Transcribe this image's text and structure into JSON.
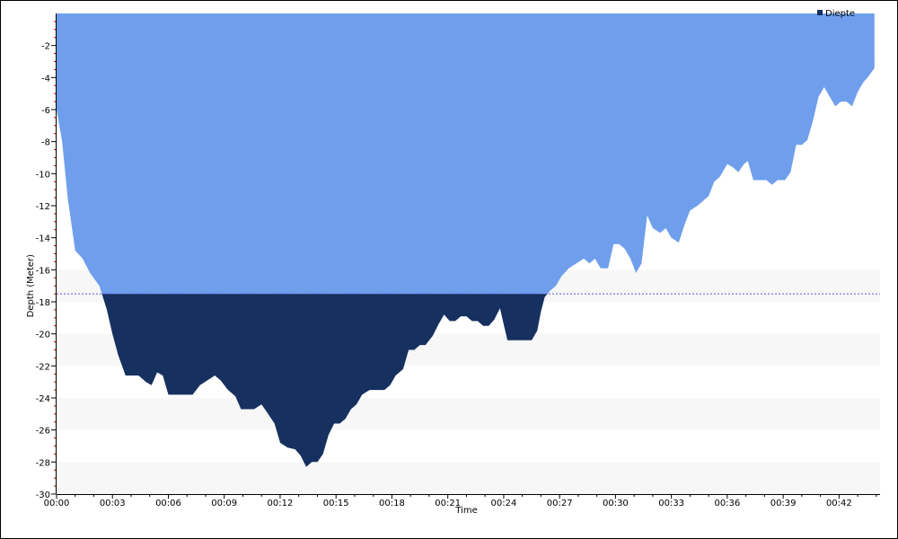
{
  "chart_data": {
    "type": "area",
    "title": "",
    "xlabel": "Time",
    "ylabel": "Depth (Meter)",
    "xlim": [
      0,
      44.2
    ],
    "ylim": [
      -30,
      0
    ],
    "x_ticks": [
      0,
      3,
      6,
      9,
      12,
      15,
      18,
      21,
      24,
      27,
      30,
      33,
      36,
      39,
      42
    ],
    "x_tick_labels": [
      "00:00",
      "00:03",
      "00:06",
      "00:09",
      "00:12",
      "00:15",
      "00:18",
      "00:21",
      "00:24",
      "00:27",
      "00:30",
      "00:33",
      "00:36",
      "00:39",
      "00:42"
    ],
    "y_ticks": [
      -2,
      -4,
      -6,
      -8,
      -10,
      -12,
      -14,
      -16,
      -18,
      -20,
      -22,
      -24,
      -26,
      -28,
      -30
    ],
    "y_tick_labels": [
      "-2",
      "-4",
      "-6",
      "-8",
      "-10",
      "-12",
      "-14",
      "-16",
      "-18",
      "-20",
      "-22",
      "-24",
      "-26",
      "-28",
      "-30"
    ],
    "threshold_depth": -17.5,
    "legend": {
      "label": "Diepte",
      "placement": "top-right"
    },
    "grid": "alternating horizontal bands",
    "colors": {
      "area_upper": "#6f9fec",
      "area_lower": "#16305f",
      "band": "#f7f7f7",
      "threshold_line": "#5a5ad0",
      "legend_swatch": "#16305f"
    },
    "series": [
      {
        "name": "Diepte",
        "points": [
          [
            0,
            -6.0
          ],
          [
            0.3,
            -8.0
          ],
          [
            0.6,
            -11.5
          ],
          [
            1.0,
            -14.8
          ],
          [
            1.4,
            -15.3
          ],
          [
            1.8,
            -16.2
          ],
          [
            2.3,
            -17.0
          ],
          [
            2.7,
            -18.5
          ],
          [
            3.0,
            -20.0
          ],
          [
            3.3,
            -21.3
          ],
          [
            3.7,
            -22.6
          ],
          [
            4.0,
            -22.6
          ],
          [
            4.4,
            -22.6
          ],
          [
            4.8,
            -23.0
          ],
          [
            5.1,
            -23.2
          ],
          [
            5.4,
            -22.4
          ],
          [
            5.7,
            -22.6
          ],
          [
            6.0,
            -23.8
          ],
          [
            6.4,
            -23.8
          ],
          [
            6.8,
            -23.8
          ],
          [
            7.3,
            -23.8
          ],
          [
            7.7,
            -23.2
          ],
          [
            8.1,
            -22.9
          ],
          [
            8.5,
            -22.6
          ],
          [
            8.8,
            -22.9
          ],
          [
            9.2,
            -23.5
          ],
          [
            9.6,
            -23.9
          ],
          [
            9.9,
            -24.7
          ],
          [
            10.3,
            -24.7
          ],
          [
            10.6,
            -24.7
          ],
          [
            11.0,
            -24.4
          ],
          [
            11.3,
            -24.9
          ],
          [
            11.7,
            -25.6
          ],
          [
            12.0,
            -26.8
          ],
          [
            12.4,
            -27.1
          ],
          [
            12.8,
            -27.2
          ],
          [
            13.1,
            -27.6
          ],
          [
            13.4,
            -28.3
          ],
          [
            13.7,
            -28.0
          ],
          [
            14.0,
            -28.0
          ],
          [
            14.3,
            -27.5
          ],
          [
            14.6,
            -26.3
          ],
          [
            14.9,
            -25.6
          ],
          [
            15.2,
            -25.6
          ],
          [
            15.5,
            -25.3
          ],
          [
            15.8,
            -24.7
          ],
          [
            16.1,
            -24.4
          ],
          [
            16.4,
            -23.8
          ],
          [
            16.8,
            -23.5
          ],
          [
            17.2,
            -23.5
          ],
          [
            17.6,
            -23.5
          ],
          [
            17.9,
            -23.2
          ],
          [
            18.2,
            -22.6
          ],
          [
            18.6,
            -22.2
          ],
          [
            18.9,
            -21.0
          ],
          [
            19.2,
            -21.0
          ],
          [
            19.5,
            -20.7
          ],
          [
            19.8,
            -20.7
          ],
          [
            20.2,
            -20.1
          ],
          [
            20.5,
            -19.4
          ],
          [
            20.8,
            -18.8
          ],
          [
            21.1,
            -19.2
          ],
          [
            21.4,
            -19.2
          ],
          [
            21.7,
            -18.9
          ],
          [
            22.0,
            -18.9
          ],
          [
            22.3,
            -19.2
          ],
          [
            22.6,
            -19.2
          ],
          [
            22.9,
            -19.5
          ],
          [
            23.2,
            -19.5
          ],
          [
            23.5,
            -19.1
          ],
          [
            23.8,
            -18.4
          ],
          [
            24.0,
            -19.4
          ],
          [
            24.2,
            -20.4
          ],
          [
            24.5,
            -20.4
          ],
          [
            24.8,
            -20.4
          ],
          [
            25.1,
            -20.4
          ],
          [
            25.5,
            -20.4
          ],
          [
            25.8,
            -19.8
          ],
          [
            26.0,
            -18.6
          ],
          [
            26.2,
            -17.7
          ],
          [
            26.5,
            -17.3
          ],
          [
            26.8,
            -17.0
          ],
          [
            27.1,
            -16.4
          ],
          [
            27.5,
            -15.9
          ],
          [
            27.9,
            -15.6
          ],
          [
            28.3,
            -15.3
          ],
          [
            28.6,
            -15.6
          ],
          [
            28.9,
            -15.3
          ],
          [
            29.2,
            -15.9
          ],
          [
            29.6,
            -15.9
          ],
          [
            29.9,
            -14.4
          ],
          [
            30.2,
            -14.4
          ],
          [
            30.5,
            -14.7
          ],
          [
            30.8,
            -15.3
          ],
          [
            31.1,
            -16.2
          ],
          [
            31.4,
            -15.6
          ],
          [
            31.7,
            -12.6
          ],
          [
            32.0,
            -13.4
          ],
          [
            32.4,
            -13.7
          ],
          [
            32.7,
            -13.4
          ],
          [
            33.0,
            -14.0
          ],
          [
            33.4,
            -14.3
          ],
          [
            33.7,
            -13.2
          ],
          [
            34.0,
            -12.3
          ],
          [
            34.4,
            -12.0
          ],
          [
            34.7,
            -11.7
          ],
          [
            35.0,
            -11.4
          ],
          [
            35.3,
            -10.5
          ],
          [
            35.6,
            -10.2
          ],
          [
            36.0,
            -9.4
          ],
          [
            36.3,
            -9.6
          ],
          [
            36.6,
            -9.9
          ],
          [
            36.9,
            -9.4
          ],
          [
            37.1,
            -9.2
          ],
          [
            37.4,
            -10.4
          ],
          [
            37.8,
            -10.4
          ],
          [
            38.1,
            -10.4
          ],
          [
            38.4,
            -10.7
          ],
          [
            38.7,
            -10.4
          ],
          [
            39.1,
            -10.4
          ],
          [
            39.4,
            -9.9
          ],
          [
            39.7,
            -8.2
          ],
          [
            40.0,
            -8.2
          ],
          [
            40.3,
            -7.9
          ],
          [
            40.6,
            -6.7
          ],
          [
            40.9,
            -5.2
          ],
          [
            41.2,
            -4.6
          ],
          [
            41.5,
            -5.2
          ],
          [
            41.8,
            -5.8
          ],
          [
            42.1,
            -5.5
          ],
          [
            42.4,
            -5.5
          ],
          [
            42.7,
            -5.8
          ],
          [
            43.0,
            -4.9
          ],
          [
            43.3,
            -4.3
          ],
          [
            43.6,
            -3.9
          ],
          [
            43.9,
            -3.4
          ]
        ]
      }
    ]
  }
}
